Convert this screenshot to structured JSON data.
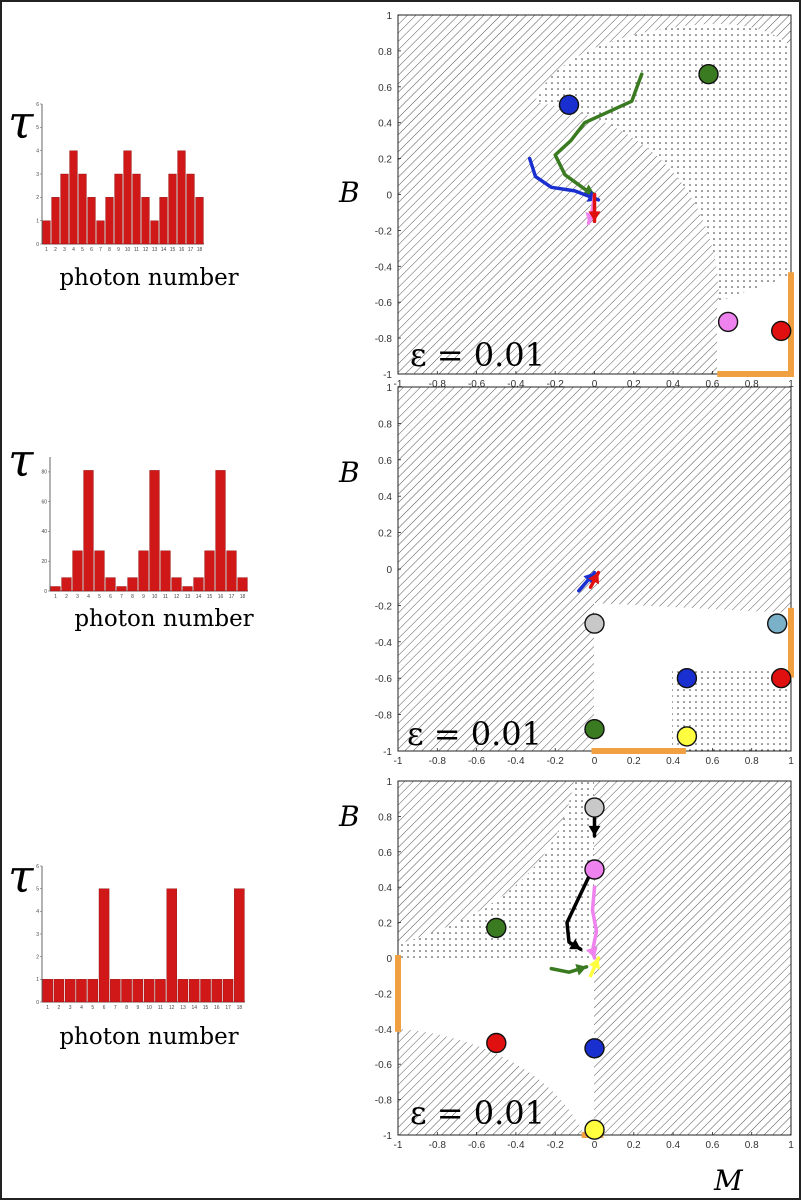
{
  "figure": {
    "tau_label": "τ",
    "hist_xlabel": "photon number",
    "phase_ylabel": "B",
    "phase_xlabel": "M",
    "colors": {
      "bar": "#d01818",
      "orange": "#f0a040",
      "green": "#3a7a20",
      "blue": "#1a2fd0",
      "pink": "#ee82ee",
      "red": "#e01010",
      "gray": "#c8c8c8",
      "lightblue": "#7ab0c8",
      "yellow": "#ffff40"
    }
  },
  "chart_data": [
    {
      "type": "bar",
      "categories": [
        "1",
        "2",
        "3",
        "4",
        "5",
        "6",
        "7",
        "8",
        "9",
        "10",
        "11",
        "12",
        "13",
        "14",
        "15",
        "16",
        "17",
        "18"
      ],
      "values": [
        1,
        2,
        3,
        4,
        3,
        2,
        1,
        2,
        3,
        4,
        3,
        2,
        1,
        2,
        3,
        4,
        3,
        2
      ],
      "xlabel": "photon number",
      "ylabel": "τ",
      "ylim": [
        0,
        6
      ],
      "yticks": [
        "0",
        "1",
        "2",
        "3",
        "4",
        "5",
        "6"
      ]
    },
    {
      "type": "bar",
      "categories": [
        "1",
        "2",
        "3",
        "4",
        "5",
        "6",
        "7",
        "8",
        "9",
        "10",
        "11",
        "12",
        "13",
        "14",
        "15",
        "16",
        "17",
        "18"
      ],
      "values": [
        3,
        9,
        27,
        81,
        27,
        9,
        3,
        9,
        27,
        81,
        27,
        9,
        3,
        9,
        27,
        81,
        27,
        9
      ],
      "xlabel": "photon number",
      "ylabel": "τ",
      "ylim": [
        0,
        90
      ],
      "yticks": [
        "0",
        "20",
        "40",
        "60",
        "80"
      ]
    },
    {
      "type": "bar",
      "categories": [
        "1",
        "2",
        "3",
        "4",
        "5",
        "6",
        "7",
        "8",
        "9",
        "10",
        "11",
        "12",
        "13",
        "14",
        "15",
        "16",
        "17",
        "18"
      ],
      "values": [
        1,
        1,
        1,
        1,
        1,
        5,
        1,
        1,
        1,
        1,
        1,
        5,
        1,
        1,
        1,
        1,
        1,
        5
      ],
      "xlabel": "photon number",
      "ylabel": "τ",
      "ylim": [
        0,
        6
      ],
      "yticks": [
        "0",
        "1",
        "2",
        "3",
        "4",
        "5",
        "6"
      ]
    },
    {
      "type": "scatter",
      "title": "ε = 0.01",
      "xlabel": "",
      "ylabel": "B",
      "xlim": [
        -1,
        1
      ],
      "ylim": [
        -1,
        1
      ],
      "xticks": [
        "-1",
        "-0.8",
        "-0.6",
        "-0.4",
        "-0.2",
        "0",
        "0.2",
        "0.4",
        "0.6",
        "0.8",
        "1"
      ],
      "yticks": [
        "1",
        "0.8",
        "0.6",
        "0.4",
        "0.2",
        "0",
        "-0.2",
        "-0.4",
        "-0.6",
        "-0.8",
        "-1"
      ],
      "points": [
        {
          "x": -0.13,
          "y": 0.5,
          "color": "blue"
        },
        {
          "x": 0.58,
          "y": 0.67,
          "color": "green"
        },
        {
          "x": 0.68,
          "y": -0.71,
          "color": "pink"
        },
        {
          "x": 0.95,
          "y": -0.76,
          "color": "red"
        }
      ],
      "trajectories": [
        {
          "color": "green",
          "points": [
            [
              0.24,
              0.67
            ],
            [
              0.19,
              0.52
            ],
            [
              -0.05,
              0.4
            ],
            [
              -0.12,
              0.3
            ],
            [
              -0.2,
              0.22
            ],
            [
              -0.15,
              0.11
            ],
            [
              -0.05,
              0.03
            ],
            [
              0,
              0
            ]
          ]
        },
        {
          "color": "blue",
          "points": [
            [
              -0.33,
              0.2
            ],
            [
              -0.3,
              0.1
            ],
            [
              -0.22,
              0.04
            ],
            [
              -0.1,
              0.02
            ],
            [
              0.02,
              -0.03
            ]
          ]
        },
        {
          "color": "pink",
          "points": [
            [
              0,
              0
            ],
            [
              -0.01,
              -0.08
            ],
            [
              -0.03,
              -0.16
            ]
          ]
        },
        {
          "color": "red",
          "points": [
            [
              0,
              0
            ],
            [
              0,
              -0.15
            ]
          ]
        }
      ],
      "boundaries": [
        {
          "color": "orange",
          "points": [
            [
              0.64,
              -1
            ],
            [
              1,
              -1
            ],
            [
              1,
              -0.45
            ]
          ]
        }
      ]
    },
    {
      "type": "scatter",
      "title": "ε = 0.01",
      "xlabel": "",
      "ylabel": "B",
      "xlim": [
        -1,
        1
      ],
      "ylim": [
        -1,
        1
      ],
      "xticks": [
        "-1",
        "-0.8",
        "-0.6",
        "-0.4",
        "-0.2",
        "0",
        "0.2",
        "0.4",
        "0.6",
        "0.8",
        "1"
      ],
      "yticks": [
        "1",
        "0.8",
        "0.6",
        "0.4",
        "0.2",
        "0",
        "-0.2",
        "-0.4",
        "-0.6",
        "-0.8",
        "-1"
      ],
      "points": [
        {
          "x": 0,
          "y": -0.3,
          "color": "gray"
        },
        {
          "x": 0.93,
          "y": -0.3,
          "color": "lightblue"
        },
        {
          "x": 0.47,
          "y": -0.6,
          "color": "blue"
        },
        {
          "x": 0.95,
          "y": -0.6,
          "color": "red"
        },
        {
          "x": 0,
          "y": -0.88,
          "color": "green"
        },
        {
          "x": 0.47,
          "y": -0.92,
          "color": "yellow"
        }
      ],
      "trajectories": [
        {
          "color": "blue",
          "points": [
            [
              -0.08,
              -0.12
            ],
            [
              0,
              -0.02
            ]
          ]
        },
        {
          "color": "red",
          "points": [
            [
              -0.02,
              -0.1
            ],
            [
              0.02,
              -0.02
            ]
          ]
        }
      ],
      "boundaries": [
        {
          "color": "orange",
          "points": [
            [
              0,
              -1
            ],
            [
              0.45,
              -1
            ]
          ]
        },
        {
          "color": "orange",
          "points": [
            [
              1,
              -0.23
            ],
            [
              1,
              -0.58
            ]
          ]
        }
      ]
    },
    {
      "type": "scatter",
      "title": "ε = 0.01",
      "xlabel": "M",
      "ylabel": "B",
      "xlim": [
        -1,
        1
      ],
      "ylim": [
        -1,
        1
      ],
      "xticks": [
        "-1",
        "-0.8",
        "-0.6",
        "-0.4",
        "-0.2",
        "0",
        "0.2",
        "0.4",
        "0.6",
        "0.8",
        "1"
      ],
      "yticks": [
        "1",
        "0.8",
        "0.6",
        "0.4",
        "0.2",
        "0",
        "-0.2",
        "-0.4",
        "-0.6",
        "-0.8",
        "-1"
      ],
      "points": [
        {
          "x": 0,
          "y": 0.85,
          "color": "gray"
        },
        {
          "x": 0,
          "y": 0.5,
          "color": "pink"
        },
        {
          "x": -0.5,
          "y": 0.17,
          "color": "green"
        },
        {
          "x": -0.5,
          "y": -0.48,
          "color": "red"
        },
        {
          "x": 0,
          "y": -0.51,
          "color": "blue"
        },
        {
          "x": 0,
          "y": -0.97,
          "color": "yellow"
        }
      ],
      "trajectories": [
        {
          "color": "black",
          "points": [
            [
              0,
              0.83
            ],
            [
              0,
              0.69
            ]
          ]
        },
        {
          "color": "black",
          "points": [
            [
              -0.02,
              0.48
            ],
            [
              -0.08,
              0.34
            ],
            [
              -0.14,
              0.2
            ],
            [
              -0.13,
              0.09
            ],
            [
              -0.07,
              0.05
            ]
          ]
        },
        {
          "color": "pink",
          "points": [
            [
              0,
              0.4
            ],
            [
              -0.01,
              0.27
            ],
            [
              0.01,
              0.15
            ],
            [
              -0.01,
              0.04
            ],
            [
              0,
              0
            ]
          ]
        },
        {
          "color": "green",
          "points": [
            [
              -0.22,
              -0.06
            ],
            [
              -0.13,
              -0.08
            ],
            [
              -0.04,
              -0.05
            ]
          ]
        },
        {
          "color": "yellow",
          "points": [
            [
              -0.02,
              -0.1
            ],
            [
              0.02,
              0
            ]
          ]
        }
      ],
      "boundaries": [
        {
          "color": "orange",
          "points": [
            [
              -1,
              0
            ],
            [
              -1,
              -0.4
            ]
          ]
        },
        {
          "color": "orange",
          "points": [
            [
              -0.05,
              -1
            ],
            [
              0.03,
              -1
            ]
          ]
        }
      ]
    }
  ]
}
